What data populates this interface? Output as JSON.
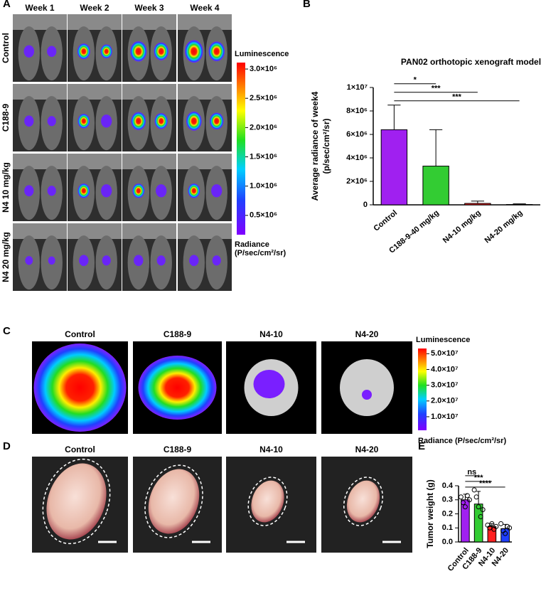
{
  "panel_labels": [
    "A",
    "B",
    "C",
    "D",
    "E"
  ],
  "panel_a": {
    "columns": [
      "Week 1",
      "Week 2",
      "Week 3",
      "Week 4"
    ],
    "rows": [
      "Control",
      "C188-9",
      "N4 10 mg/kg",
      "N4 20 mg/kg"
    ],
    "colorbar": {
      "title": "Luminescence",
      "lim": [
        170000,
        3110000
      ],
      "ticks": [
        {
          "value": 500000,
          "label": "0.5×10⁶"
        },
        {
          "value": 1000000,
          "label": "1.0×10⁶"
        },
        {
          "value": 1500000,
          "label": "1.5×10⁶"
        },
        {
          "value": 2000000,
          "label": "2.0×10⁶"
        },
        {
          "value": 2500000,
          "label": "2.5×10⁶"
        },
        {
          "value": 3000000,
          "label": "3.0×10⁶"
        }
      ],
      "footer": [
        "Radiance",
        "(P/sec/cm²/sr)"
      ]
    }
  },
  "panel_c": {
    "labels": [
      "Control",
      "C188-9",
      "N4-10",
      "N4-20"
    ],
    "colorbar": {
      "title": "Luminescence",
      "lim": [
        1400000,
        53300000
      ],
      "ticks": [
        {
          "value": 10000000,
          "label": "1.0×10⁷"
        },
        {
          "value": 20000000,
          "label": "2.0×10⁷"
        },
        {
          "value": 30000000,
          "label": "3.0×10⁷"
        },
        {
          "value": 40000000,
          "label": "4.0×10⁷"
        },
        {
          "value": 50000000,
          "label": "5.0×10⁷"
        }
      ],
      "footer": "Radiance (P/sec/cm²/sr)"
    }
  },
  "panel_d": {
    "labels": [
      "Control",
      "C188-9",
      "N4-10",
      "N4-20"
    ]
  },
  "chart_data": [
    {
      "type": "bar",
      "title": "PAN02 orthotopic xenograft model",
      "ylabel": [
        "Average radiance of week4",
        "(p/sec/cm²/sr)"
      ],
      "categories": [
        "Control",
        "C188-9-40 mg/kg",
        "N4-10 mg/kg",
        "N4-20 mg/kg"
      ],
      "values": [
        6400000,
        3300000,
        120000,
        30000
      ],
      "errors": [
        2100000,
        3100000,
        200000,
        50000
      ],
      "colors": [
        "#a020f0",
        "#33cc33",
        "#ff2020",
        "#2040ff"
      ],
      "ylim": [
        0,
        10000000
      ],
      "yticks": [
        0,
        {
          "value": 2000000,
          "label": "2×10⁶"
        },
        {
          "value": 4000000,
          "label": "4×10⁶"
        },
        {
          "value": 6000000,
          "label": "6×10⁶"
        },
        {
          "value": 8000000,
          "label": "8×10⁶"
        },
        {
          "value": 10000000,
          "label": "1×10⁷"
        }
      ],
      "comparisons": [
        {
          "label": "*",
          "groups": [
            0,
            1
          ]
        },
        {
          "label": "***",
          "groups": [
            0,
            2
          ]
        },
        {
          "label": "***",
          "groups": [
            0,
            3
          ]
        }
      ]
    },
    {
      "type": "bar",
      "ylabel": [
        "Tumor weight (g)"
      ],
      "categories": [
        "Control",
        "C188-9",
        "N4-10",
        "N4-20"
      ],
      "values": [
        0.3,
        0.27,
        0.11,
        0.095
      ],
      "errors": [
        0.04,
        0.09,
        0.02,
        0.03
      ],
      "points": [
        [
          0.32,
          0.28,
          0.25,
          0.33,
          0.3
        ],
        [
          0.37,
          0.32,
          0.25,
          0.18,
          0.23
        ],
        [
          0.12,
          0.1,
          0.13,
          0.09,
          0.11
        ],
        [
          0.13,
          0.08,
          0.06,
          0.11,
          0.1
        ]
      ],
      "colors": [
        "#a020f0",
        "#33cc33",
        "#ff2020",
        "#2040ff"
      ],
      "ylim": [
        0,
        0.4
      ],
      "yticks": [
        {
          "value": 0,
          "label": "0.0"
        },
        0.1,
        0.2,
        0.3,
        0.4
      ],
      "comparisons": [
        {
          "label": "ns",
          "groups": [
            0,
            1
          ]
        },
        {
          "label": "***",
          "groups": [
            0,
            2
          ]
        },
        {
          "label": "****",
          "groups": [
            0,
            3
          ]
        }
      ]
    }
  ]
}
